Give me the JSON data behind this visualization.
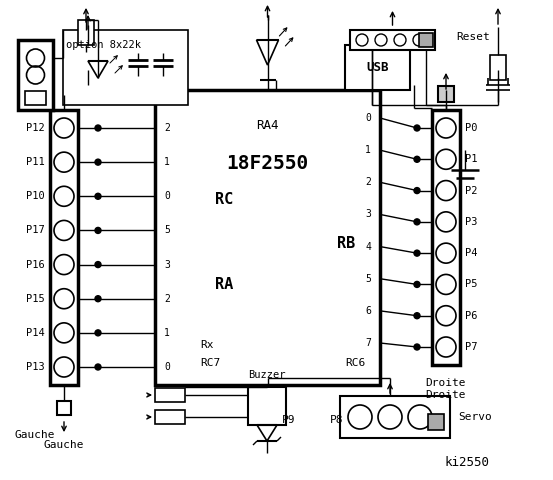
{
  "bg_color": "#ffffff",
  "fg_color": "#000000",
  "title": "ki2550",
  "chip_label": "18F2550",
  "left_pins": [
    "P12",
    "P11",
    "P10",
    "P17",
    "P16",
    "P15",
    "P14",
    "P13"
  ],
  "right_pins": [
    "P0",
    "P1",
    "P2",
    "P3",
    "P4",
    "P5",
    "P6",
    "P7"
  ],
  "rc_pins": [
    "2",
    "1",
    "0",
    "5",
    "3",
    "2",
    "1",
    "0"
  ],
  "rb_pins": [
    "0",
    "1",
    "2",
    "3",
    "4",
    "5",
    "6",
    "7"
  ],
  "reset_label": "Reset",
  "gauche_label": "Gauche",
  "droite_label": "Droite",
  "servo_label": "Servo",
  "buzzer_label": "Buzzer",
  "option_label": "option 8x22k",
  "ra4_label": "RA4",
  "rc_label": "RC",
  "ra_label": "RA",
  "rb_label": "RB",
  "rx_label": "Rx",
  "rc7_label": "RC7",
  "rc6_label": "RC6",
  "p8_label": "P8",
  "p9_label": "P9",
  "usb_label": "USB"
}
